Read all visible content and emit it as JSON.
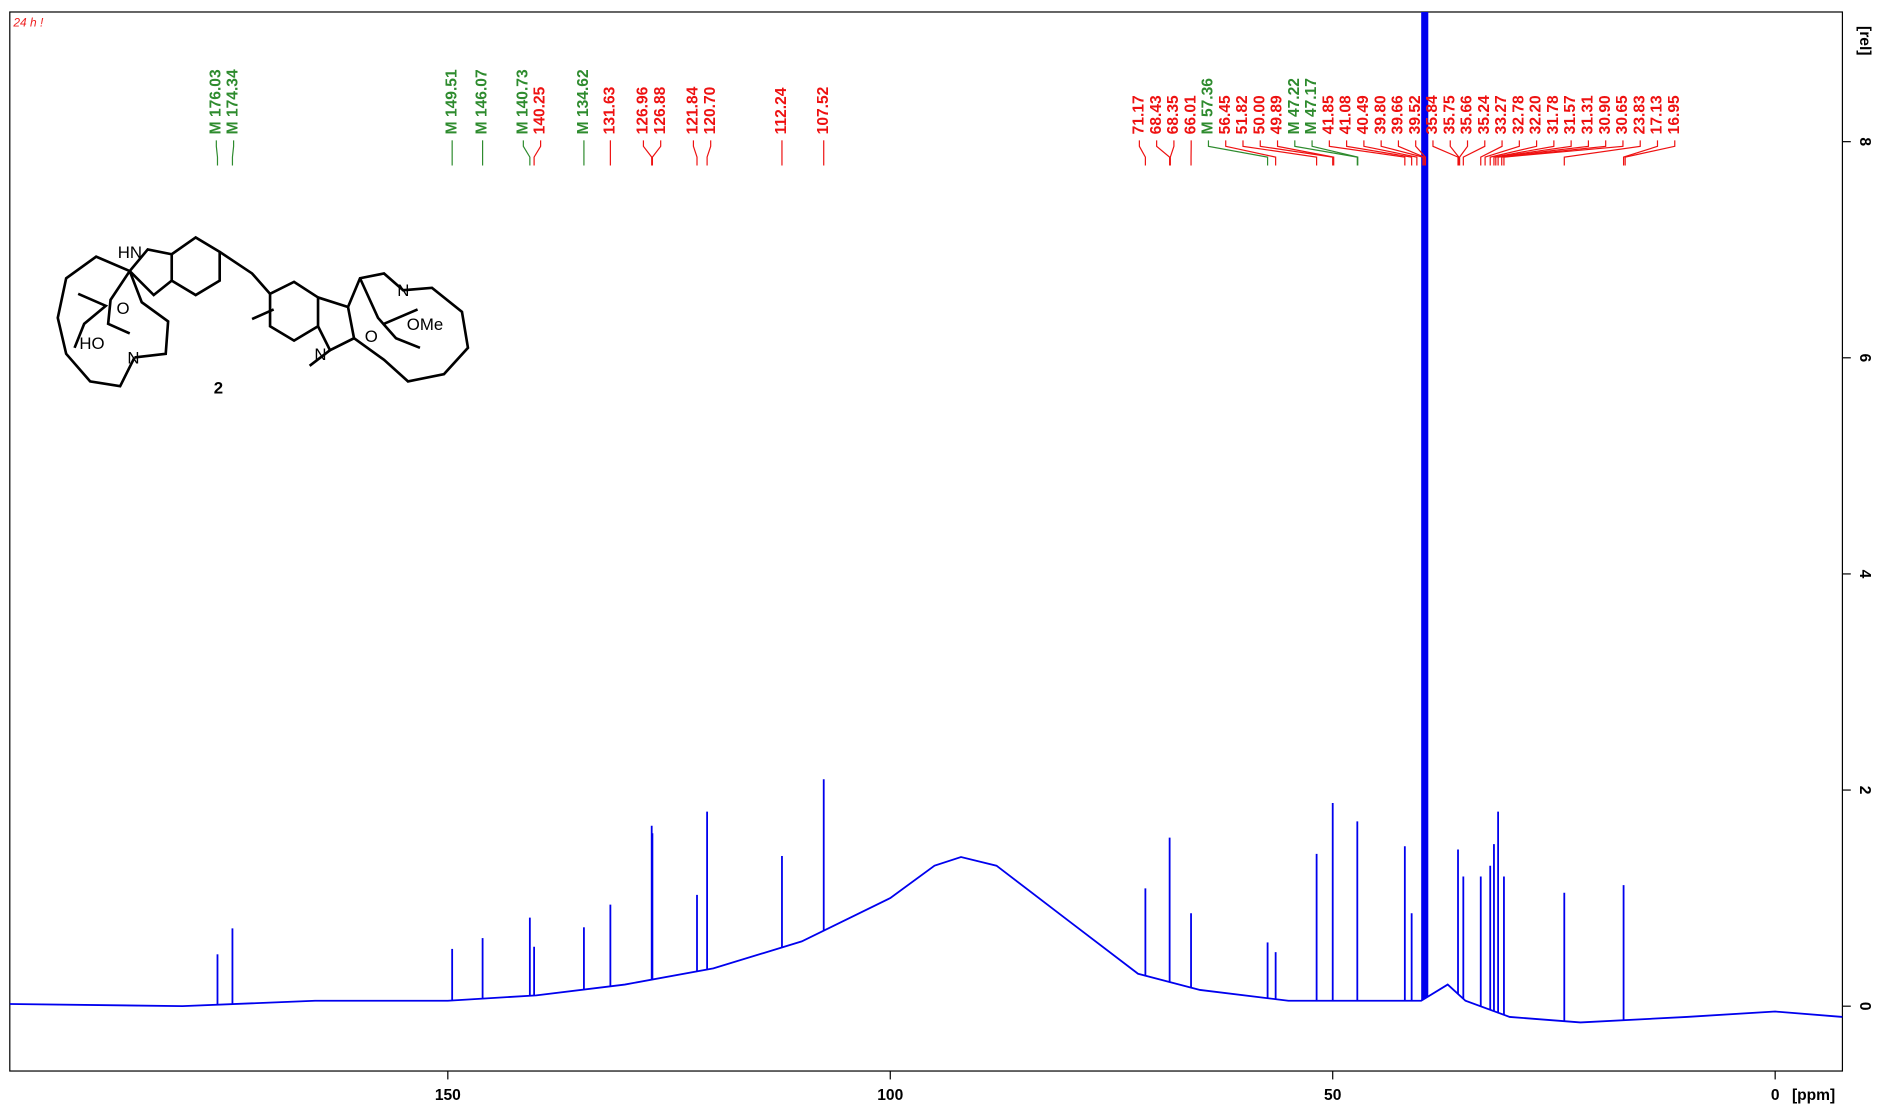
{
  "chart_data": {
    "type": "spectrum",
    "note_text": "24 h !",
    "note_color": "#ee2222",
    "x_label": "[ppm]",
    "y_label": "[rel]",
    "xlim": [
      199.5,
      -7.6
    ],
    "xticks": [
      150,
      100,
      50,
      0
    ],
    "ylim": [
      -0.6,
      9.2
    ],
    "yticks": [
      0,
      2,
      4,
      6,
      8
    ],
    "series": [
      {
        "color": "#0000ee",
        "x": [
          199.5,
          180,
          165,
          160,
          150,
          140,
          130,
          120,
          110,
          100,
          95,
          92,
          88,
          80,
          72,
          65,
          55,
          45,
          40,
          37,
          35,
          30,
          22,
          10,
          0,
          -7.6
        ],
        "values": [
          0.02,
          0.0,
          0.05,
          0.05,
          0.05,
          0.1,
          0.2,
          0.35,
          0.6,
          1.0,
          1.3,
          1.38,
          1.3,
          0.8,
          0.3,
          0.15,
          0.05,
          0.05,
          0.05,
          0.2,
          0.05,
          -0.1,
          -0.15,
          -0.1,
          -0.05,
          -0.1
        ]
      },
      {
        "color": "#0000ee",
        "x": [
          176.03,
          174.34,
          149.51,
          146.07,
          140.73,
          140.25,
          134.62,
          131.63,
          126.96,
          126.88,
          121.84,
          120.7,
          112.24,
          107.52,
          71.17,
          68.43,
          66.01,
          57.36,
          56.45,
          51.82,
          50.0,
          47.22,
          41.85,
          41.08,
          39.9,
          39.8,
          39.7,
          39.66,
          39.52,
          39.4,
          39.3,
          35.84,
          35.24,
          33.27,
          32.2,
          31.78,
          31.31,
          30.65,
          23.83,
          17.13
        ],
        "values": [
          0.48,
          0.72,
          0.53,
          0.63,
          0.82,
          0.55,
          0.73,
          0.94,
          1.67,
          1.6,
          1.03,
          1.8,
          1.39,
          2.1,
          1.09,
          1.56,
          0.86,
          0.59,
          0.5,
          1.41,
          1.88,
          1.71,
          1.48,
          0.86,
          10,
          10,
          10,
          10,
          10,
          10,
          10,
          1.45,
          1.2,
          1.2,
          1.3,
          1.5,
          1.8,
          1.2,
          1.05,
          1.12
        ]
      }
    ],
    "peak_labels": [
      {
        "label": "M 176.03",
        "value": 176.03,
        "color": "#2e8b2e"
      },
      {
        "label": "M 174.34",
        "value": 174.34,
        "color": "#2e8b2e"
      },
      {
        "label": "M 149.51",
        "value": 149.51,
        "color": "#2e8b2e"
      },
      {
        "label": "M 146.07",
        "value": 146.07,
        "color": "#2e8b2e"
      },
      {
        "label": "M 140.73",
        "value": 140.73,
        "color": "#2e8b2e"
      },
      {
        "label": "140.25",
        "value": 140.25,
        "color": "#ee1111"
      },
      {
        "label": "M 134.62",
        "value": 134.62,
        "color": "#2e8b2e"
      },
      {
        "label": "131.63",
        "value": 131.63,
        "color": "#ee1111"
      },
      {
        "label": "126.96",
        "value": 126.96,
        "color": "#ee1111"
      },
      {
        "label": "126.88",
        "value": 126.88,
        "color": "#ee1111"
      },
      {
        "label": "121.84",
        "value": 121.84,
        "color": "#ee1111"
      },
      {
        "label": "120.70",
        "value": 120.7,
        "color": "#ee1111"
      },
      {
        "label": "112.24",
        "value": 112.24,
        "color": "#ee1111"
      },
      {
        "label": "107.52",
        "value": 107.52,
        "color": "#ee1111"
      },
      {
        "label": "71.17",
        "value": 71.17,
        "color": "#ee1111"
      },
      {
        "label": "68.43",
        "value": 68.43,
        "color": "#ee1111"
      },
      {
        "label": "68.35",
        "value": 68.35,
        "color": "#ee1111"
      },
      {
        "label": "66.01",
        "value": 66.01,
        "color": "#ee1111"
      },
      {
        "label": "M 57.36",
        "value": 57.36,
        "color": "#2e8b2e"
      },
      {
        "label": "56.45",
        "value": 56.45,
        "color": "#ee1111"
      },
      {
        "label": "51.82",
        "value": 51.82,
        "color": "#ee1111"
      },
      {
        "label": "50.00",
        "value": 50.0,
        "color": "#ee1111"
      },
      {
        "label": "49.89",
        "value": 49.89,
        "color": "#ee1111"
      },
      {
        "label": "M 47.22",
        "value": 47.22,
        "color": "#2e8b2e"
      },
      {
        "label": "M 47.17",
        "value": 47.17,
        "color": "#2e8b2e"
      },
      {
        "label": "41.85",
        "value": 41.85,
        "color": "#ee1111"
      },
      {
        "label": "41.08",
        "value": 41.08,
        "color": "#ee1111"
      },
      {
        "label": "40.49",
        "value": 40.49,
        "color": "#ee1111"
      },
      {
        "label": "39.80",
        "value": 39.8,
        "color": "#ee1111"
      },
      {
        "label": "39.66",
        "value": 39.66,
        "color": "#ee1111"
      },
      {
        "label": "39.52",
        "value": 39.52,
        "color": "#ee1111"
      },
      {
        "label": "35.84",
        "value": 35.84,
        "color": "#ee1111"
      },
      {
        "label": "35.75",
        "value": 35.75,
        "color": "#ee1111"
      },
      {
        "label": "35.66",
        "value": 35.66,
        "color": "#ee1111"
      },
      {
        "label": "35.24",
        "value": 35.24,
        "color": "#ee1111"
      },
      {
        "label": "33.27",
        "value": 33.27,
        "color": "#ee1111"
      },
      {
        "label": "32.78",
        "value": 32.78,
        "color": "#ee1111"
      },
      {
        "label": "32.20",
        "value": 32.2,
        "color": "#ee1111"
      },
      {
        "label": "31.78",
        "value": 31.78,
        "color": "#ee1111"
      },
      {
        "label": "31.57",
        "value": 31.57,
        "color": "#ee1111"
      },
      {
        "label": "31.31",
        "value": 31.31,
        "color": "#ee1111"
      },
      {
        "label": "30.90",
        "value": 30.9,
        "color": "#ee1111"
      },
      {
        "label": "30.65",
        "value": 30.65,
        "color": "#ee1111"
      },
      {
        "label": "23.83",
        "value": 23.83,
        "color": "#ee1111"
      },
      {
        "label": "17.13",
        "value": 17.13,
        "color": "#ee1111"
      },
      {
        "label": "16.95",
        "value": 16.95,
        "color": "#ee1111"
      }
    ]
  },
  "structure": {
    "labels": [
      "HN",
      "O",
      "HO",
      "N",
      "2",
      "N",
      "O",
      "OMe",
      "N"
    ]
  }
}
